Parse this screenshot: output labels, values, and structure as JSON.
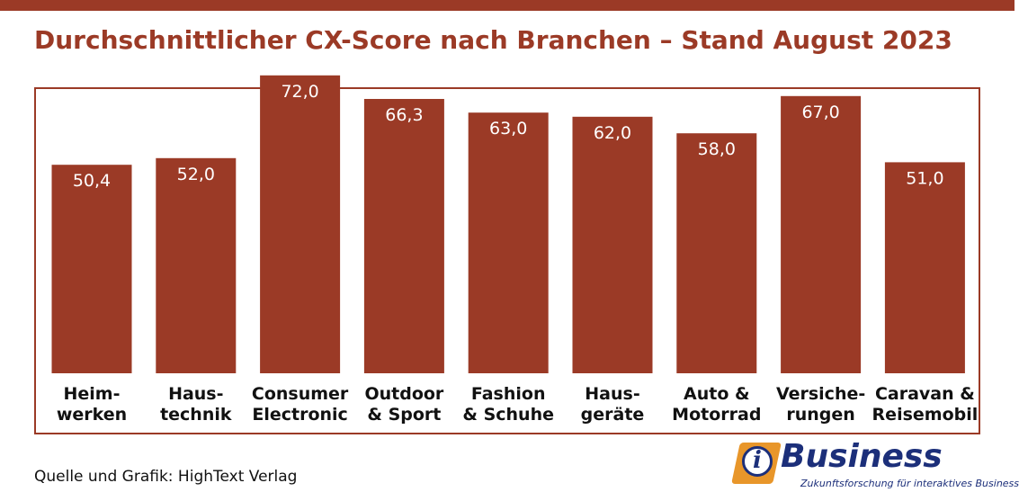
{
  "colors": {
    "accent": "#9b3a26",
    "bar": "#9b3a26",
    "value_text": "#ffffff",
    "label_text": "#111111",
    "logo_blue": "#1c2f7a",
    "logo_orange": "#e8962a"
  },
  "source": "Quelle und Grafik: HighText Verlag",
  "logo": {
    "letter": "i",
    "word": "iBusiness",
    "tagline": "Zukunftsforschung für interaktives Business",
    "icon": "ibusiness-logo-icon"
  },
  "chart_data": {
    "type": "bar",
    "title": "Durchschnittlicher CX-Score nach Branchen – Stand August 2023",
    "xlabel": "",
    "ylabel": "",
    "ylim": [
      0,
      100
    ],
    "grid": false,
    "categories": [
      [
        "Heim-",
        "werken"
      ],
      [
        "Haus-",
        "technik"
      ],
      [
        "Consumer",
        "Electronic"
      ],
      [
        "Outdoor",
        "& Sport"
      ],
      [
        "Fashion",
        "& Schuhe"
      ],
      [
        "Haus-",
        "geräte"
      ],
      [
        "Auto &",
        "Motorrad"
      ],
      [
        "Versiche-",
        "rungen"
      ],
      [
        "Caravan &",
        "Reisemobil"
      ]
    ],
    "values": [
      50.4,
      52.0,
      72.0,
      66.3,
      63.0,
      62.0,
      58.0,
      67.0,
      51.0
    ],
    "value_labels": [
      "50,4",
      "52,0",
      "72,0",
      "66,3",
      "63,0",
      "62,0",
      "58,0",
      "67,0",
      "51,0"
    ]
  }
}
